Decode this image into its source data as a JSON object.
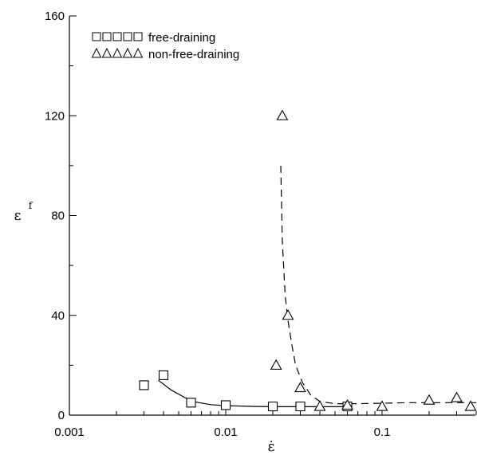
{
  "chart_data": {
    "type": "scatter",
    "xscale": "log",
    "xlim": [
      0.001,
      0.4
    ],
    "ylim": [
      0,
      160
    ],
    "xticks": [
      0.001,
      0.01,
      0.1
    ],
    "xtick_labels": [
      "0.001",
      "0.01",
      "0.1"
    ],
    "yticks": [
      0,
      40,
      80,
      120,
      160
    ],
    "ytick_labels": [
      "0",
      "40",
      "80",
      "120",
      "160"
    ],
    "xlabel": "ε̇",
    "ylabel": "ε",
    "ylabel_sub": "f",
    "grid": false,
    "legend_position": "top-left",
    "series": [
      {
        "name": "free-draining",
        "legend_symbol": "□□□□□",
        "marker": "square",
        "points": [
          [
            0.003,
            12
          ],
          [
            0.004,
            16
          ],
          [
            0.006,
            5
          ],
          [
            0.01,
            4
          ],
          [
            0.02,
            3.5
          ],
          [
            0.03,
            3.5
          ],
          [
            0.06,
            3.5
          ]
        ],
        "fit_style": "solid",
        "fit": [
          [
            0.0037,
            14
          ],
          [
            0.0045,
            10
          ],
          [
            0.0055,
            7
          ],
          [
            0.0065,
            5.2
          ],
          [
            0.008,
            4.2
          ],
          [
            0.01,
            3.8
          ],
          [
            0.015,
            3.5
          ],
          [
            0.02,
            3.4
          ],
          [
            0.03,
            3.4
          ],
          [
            0.04,
            3.4
          ],
          [
            0.06,
            3.4
          ]
        ]
      },
      {
        "name": "non-free-draining",
        "legend_symbol": "△△△△△",
        "marker": "triangle",
        "points": [
          [
            0.021,
            20
          ],
          [
            0.023,
            120
          ],
          [
            0.025,
            40
          ],
          [
            0.03,
            11
          ],
          [
            0.04,
            3.5
          ],
          [
            0.06,
            4
          ],
          [
            0.1,
            3.5
          ],
          [
            0.2,
            6
          ],
          [
            0.3,
            7
          ],
          [
            0.4,
            3.5
          ]
        ],
        "fit_style": "dashed",
        "fit": [
          [
            0.0225,
            100
          ],
          [
            0.023,
            70
          ],
          [
            0.024,
            48
          ],
          [
            0.025,
            38
          ],
          [
            0.0265,
            28
          ],
          [
            0.028,
            20
          ],
          [
            0.031,
            13
          ],
          [
            0.035,
            8
          ],
          [
            0.04,
            5.5
          ],
          [
            0.05,
            4.6
          ],
          [
            0.07,
            4.6
          ],
          [
            0.1,
            4.8
          ],
          [
            0.15,
            5
          ],
          [
            0.2,
            5
          ],
          [
            0.3,
            5
          ],
          [
            0.4,
            5
          ]
        ]
      }
    ]
  }
}
